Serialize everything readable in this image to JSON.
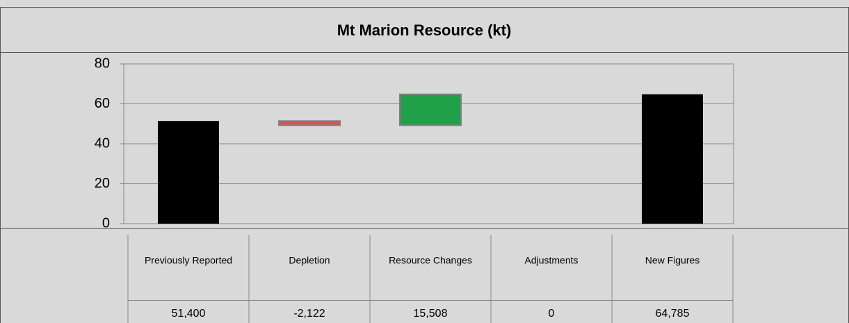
{
  "chart_data": {
    "type": "waterfall",
    "title": "Mt Marion Resource (kt)",
    "categories": [
      "Previously Reported",
      "Depletion",
      "Resource Changes",
      "Adjustments",
      "New Figures"
    ],
    "values": [
      51.4,
      -2.122,
      15.508,
      0,
      64.785
    ],
    "value_labels": [
      "51,400",
      "-2,122",
      "15,508",
      "0",
      "64,785"
    ],
    "is_total": [
      true,
      false,
      false,
      false,
      true
    ],
    "colors": [
      "#000000",
      "#d9534f",
      "#21a04a",
      "#21a04a",
      "#000000"
    ],
    "ylim": [
      0,
      80
    ],
    "yticks": [
      0,
      20,
      40,
      60,
      80
    ],
    "grid": true
  }
}
